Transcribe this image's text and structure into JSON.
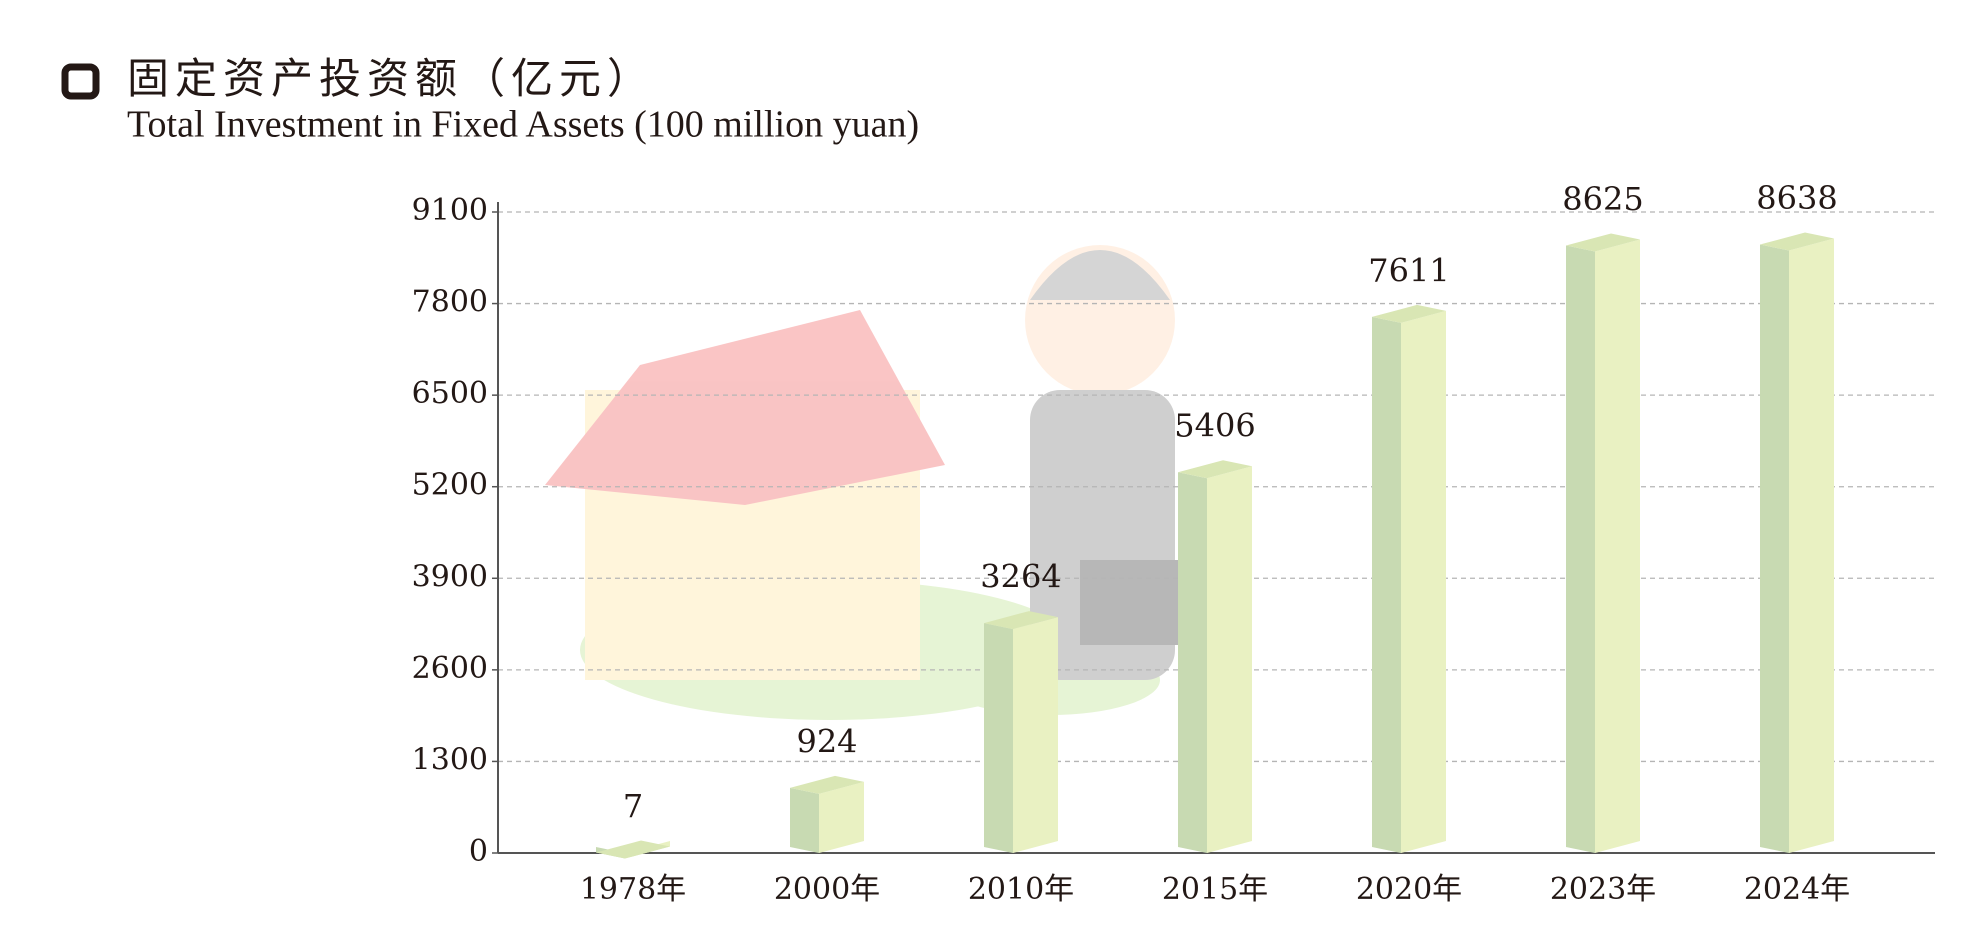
{
  "chart_data": {
    "type": "bar3d",
    "title": "固定资产投资额（亿元）",
    "subtitle": "Total Investment in Fixed Assets (100 million yuan)",
    "categories": [
      "1978年",
      "2000年",
      "2010年",
      "2015年",
      "2020年",
      "2023年",
      "2024年"
    ],
    "values": [
      7,
      924,
      3264,
      5406,
      7611,
      8625,
      8638
    ],
    "colors": {
      "left": "#c8dab2",
      "right": "#e9f1c2",
      "top": "#d9e6b4"
    },
    "ylim": [
      0,
      9100
    ],
    "yticks": [
      0,
      1300,
      2600,
      3900,
      5200,
      6500,
      7800,
      9100
    ],
    "grid": true
  }
}
